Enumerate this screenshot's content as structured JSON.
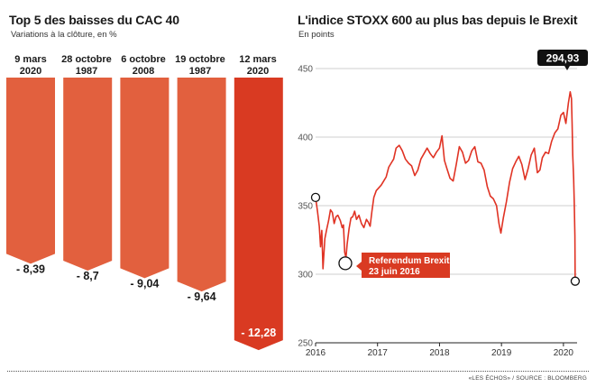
{
  "left_chart": {
    "title": "Top 5 des baisses du CAC 40",
    "subtitle": "Variations à la clôture, en %"
  },
  "right_chart": {
    "title": "L'indice STOXX 600 au plus bas depuis le Brexit",
    "subtitle": "En points",
    "last_value_badge": "294,93",
    "annotation": {
      "line1": "Referendum Brexit",
      "line2": "23 juin 2016"
    }
  },
  "source": "«LES ÉCHOS» / SOURCE : BLOOMBERG",
  "colors": {
    "bar": "#e2603e",
    "bar_highlight": "#d93a22",
    "line": "#e03324",
    "grid": "#cfcfcf",
    "badge_bg": "#111111"
  },
  "chart_data": [
    {
      "type": "bar",
      "title": "Top 5 des baisses du CAC 40",
      "subtitle": "Variations à la clôture, en %",
      "categories": [
        [
          "9 mars",
          "2020"
        ],
        [
          "28 octobre",
          "1987"
        ],
        [
          "6 octobre",
          "2008"
        ],
        [
          "19 octobre",
          "1987"
        ],
        [
          "12 mars",
          "2020"
        ]
      ],
      "values": [
        -8.39,
        -8.7,
        -9.04,
        -9.64,
        -12.28
      ],
      "value_labels": [
        "- 8,39",
        "- 8,7",
        "- 9,04",
        "- 9,64",
        "- 12,28"
      ],
      "highlight_index": 4
    },
    {
      "type": "line",
      "title": "L'indice STOXX 600 au plus bas depuis le Brexit",
      "ylabel": "En points",
      "xlim": [
        2016.0,
        2020.22
      ],
      "ylim": [
        250,
        450
      ],
      "yticks": [
        250,
        300,
        350,
        400,
        450
      ],
      "xticks": [
        "2016",
        "2017",
        "2018",
        "2019",
        "2020"
      ],
      "grid": true,
      "points": [
        [
          2016.0,
          356
        ],
        [
          2016.03,
          346
        ],
        [
          2016.06,
          335
        ],
        [
          2016.08,
          320
        ],
        [
          2016.1,
          332
        ],
        [
          2016.12,
          304
        ],
        [
          2016.15,
          326
        ],
        [
          2016.18,
          333
        ],
        [
          2016.21,
          339
        ],
        [
          2016.24,
          347
        ],
        [
          2016.27,
          345
        ],
        [
          2016.3,
          337
        ],
        [
          2016.33,
          342
        ],
        [
          2016.36,
          343
        ],
        [
          2016.4,
          339
        ],
        [
          2016.43,
          334
        ],
        [
          2016.45,
          336
        ],
        [
          2016.47,
          316
        ],
        [
          2016.49,
          312
        ],
        [
          2016.51,
          322
        ],
        [
          2016.54,
          333
        ],
        [
          2016.57,
          341
        ],
        [
          2016.6,
          342
        ],
        [
          2016.63,
          346
        ],
        [
          2016.66,
          340
        ],
        [
          2016.7,
          343
        ],
        [
          2016.74,
          337
        ],
        [
          2016.78,
          334
        ],
        [
          2016.82,
          340
        ],
        [
          2016.85,
          338
        ],
        [
          2016.88,
          335
        ],
        [
          2016.91,
          346
        ],
        [
          2016.94,
          356
        ],
        [
          2016.98,
          361
        ],
        [
          2017.02,
          363
        ],
        [
          2017.06,
          365
        ],
        [
          2017.1,
          368
        ],
        [
          2017.14,
          371
        ],
        [
          2017.18,
          378
        ],
        [
          2017.22,
          381
        ],
        [
          2017.26,
          384
        ],
        [
          2017.3,
          392
        ],
        [
          2017.35,
          394
        ],
        [
          2017.4,
          390
        ],
        [
          2017.45,
          384
        ],
        [
          2017.5,
          381
        ],
        [
          2017.55,
          379
        ],
        [
          2017.6,
          372
        ],
        [
          2017.65,
          376
        ],
        [
          2017.7,
          384
        ],
        [
          2017.75,
          388
        ],
        [
          2017.8,
          392
        ],
        [
          2017.85,
          388
        ],
        [
          2017.9,
          385
        ],
        [
          2017.95,
          389
        ],
        [
          2018.0,
          392
        ],
        [
          2018.04,
          401
        ],
        [
          2018.08,
          383
        ],
        [
          2018.12,
          377
        ],
        [
          2018.17,
          370
        ],
        [
          2018.22,
          368
        ],
        [
          2018.27,
          380
        ],
        [
          2018.32,
          393
        ],
        [
          2018.37,
          389
        ],
        [
          2018.42,
          381
        ],
        [
          2018.47,
          383
        ],
        [
          2018.52,
          390
        ],
        [
          2018.57,
          393
        ],
        [
          2018.62,
          382
        ],
        [
          2018.67,
          381
        ],
        [
          2018.72,
          376
        ],
        [
          2018.77,
          364
        ],
        [
          2018.82,
          357
        ],
        [
          2018.87,
          355
        ],
        [
          2018.92,
          350
        ],
        [
          2018.96,
          337
        ],
        [
          2018.99,
          330
        ],
        [
          2019.03,
          341
        ],
        [
          2019.08,
          353
        ],
        [
          2019.13,
          367
        ],
        [
          2019.18,
          377
        ],
        [
          2019.23,
          382
        ],
        [
          2019.28,
          386
        ],
        [
          2019.33,
          380
        ],
        [
          2019.38,
          369
        ],
        [
          2019.43,
          377
        ],
        [
          2019.48,
          387
        ],
        [
          2019.53,
          392
        ],
        [
          2019.58,
          374
        ],
        [
          2019.62,
          376
        ],
        [
          2019.66,
          385
        ],
        [
          2019.71,
          389
        ],
        [
          2019.76,
          388
        ],
        [
          2019.81,
          397
        ],
        [
          2019.86,
          403
        ],
        [
          2019.91,
          406
        ],
        [
          2019.96,
          416
        ],
        [
          2020.0,
          418
        ],
        [
          2020.04,
          410
        ],
        [
          2020.08,
          425
        ],
        [
          2020.11,
          433
        ],
        [
          2020.13,
          428
        ],
        [
          2020.14,
          410
        ],
        [
          2020.15,
          387
        ],
        [
          2020.165,
          370
        ],
        [
          2020.175,
          352
        ],
        [
          2020.185,
          328
        ],
        [
          2020.19,
          294.93
        ]
      ],
      "markers": [
        {
          "x": 2016.0,
          "y": 356
        },
        {
          "x": 2016.48,
          "y": 308
        },
        {
          "x": 2020.19,
          "y": 294.93
        }
      ]
    }
  ]
}
